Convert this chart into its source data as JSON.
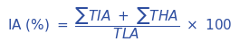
{
  "text_color": "#2E4EA0",
  "background_color": "#FFFFFF",
  "fontsize": 11,
  "figwidth": 2.65,
  "figheight": 0.57,
  "dpi": 100
}
